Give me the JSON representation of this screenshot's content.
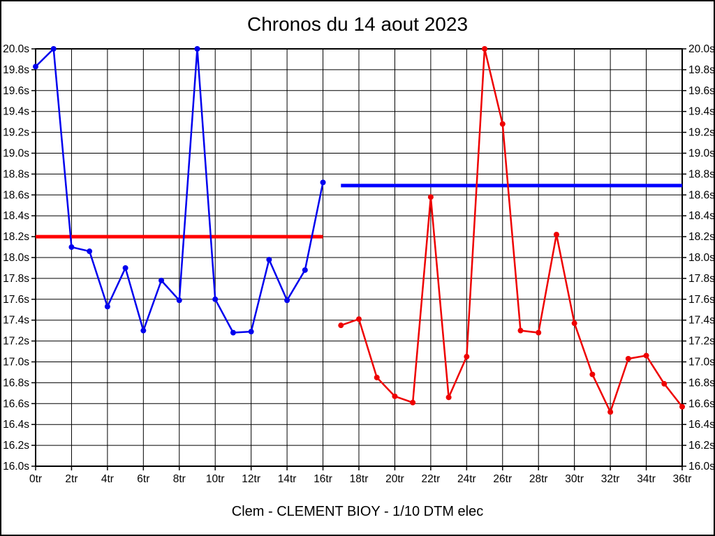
{
  "title": "Chronos du 14 aout 2023",
  "caption": "Clem - CLEMENT BIOY - 1/10 DTM elec",
  "colors": {
    "series_run1": "#0000ee",
    "series_run2": "#ee0000",
    "ref_line_run1": "#ff0000",
    "ref_line_run2": "#0000ff",
    "grid": "#000000",
    "background": "#ffffff"
  },
  "chart_data": {
    "type": "line",
    "title": "Chronos du 14 aout 2023",
    "xlabel": "",
    "ylabel": "",
    "x_unit": "tr",
    "y_unit": "s",
    "xlim": [
      0,
      36
    ],
    "ylim": [
      16.0,
      20.0
    ],
    "x_tick_step": 2,
    "y_tick_step": 0.2,
    "grid": true,
    "legend": "none",
    "x_tick_labels": [
      "0tr",
      "2tr",
      "4tr",
      "6tr",
      "8tr",
      "10tr",
      "12tr",
      "14tr",
      "16tr",
      "18tr",
      "20tr",
      "22tr",
      "24tr",
      "26tr",
      "28tr",
      "30tr",
      "32tr",
      "34tr",
      "36tr"
    ],
    "y_tick_labels": [
      "20.0s",
      "19.8s",
      "19.6s",
      "19.4s",
      "19.2s",
      "19.0s",
      "18.8s",
      "18.6s",
      "18.4s",
      "18.2s",
      "18.0s",
      "17.8s",
      "17.6s",
      "17.4s",
      "17.2s",
      "17.0s",
      "16.8s",
      "16.6s",
      "16.4s",
      "16.2s",
      "16.0s"
    ],
    "series": [
      {
        "name": "run-1-blue",
        "color": "#0000ee",
        "x": [
          0,
          1,
          2,
          3,
          4,
          5,
          6,
          7,
          8,
          9,
          10,
          11,
          12,
          13,
          14,
          15,
          16
        ],
        "values": [
          19.83,
          20.0,
          18.1,
          18.06,
          17.53,
          17.9,
          17.3,
          17.78,
          17.59,
          20.0,
          17.6,
          17.28,
          17.29,
          17.98,
          17.59,
          17.88,
          18.72
        ]
      },
      {
        "name": "run-2-red",
        "color": "#ee0000",
        "x": [
          17,
          18,
          19,
          20,
          21,
          22,
          23,
          24,
          25,
          26,
          27,
          28,
          29,
          30,
          31,
          32,
          33,
          34,
          35,
          36
        ],
        "values": [
          17.35,
          17.41,
          16.85,
          16.67,
          16.61,
          18.58,
          16.66,
          17.05,
          20.0,
          19.28,
          17.3,
          17.28,
          18.22,
          17.37,
          16.88,
          16.52,
          17.03,
          17.06,
          16.79,
          16.57
        ]
      }
    ],
    "reference_lines": [
      {
        "name": "run-1-average-line",
        "color": "#ff0000",
        "value": 18.2,
        "x_start": 0,
        "x_end": 16
      },
      {
        "name": "run-2-average-line",
        "color": "#0000ff",
        "value": 18.69,
        "x_start": 17,
        "x_end": 36
      }
    ]
  }
}
